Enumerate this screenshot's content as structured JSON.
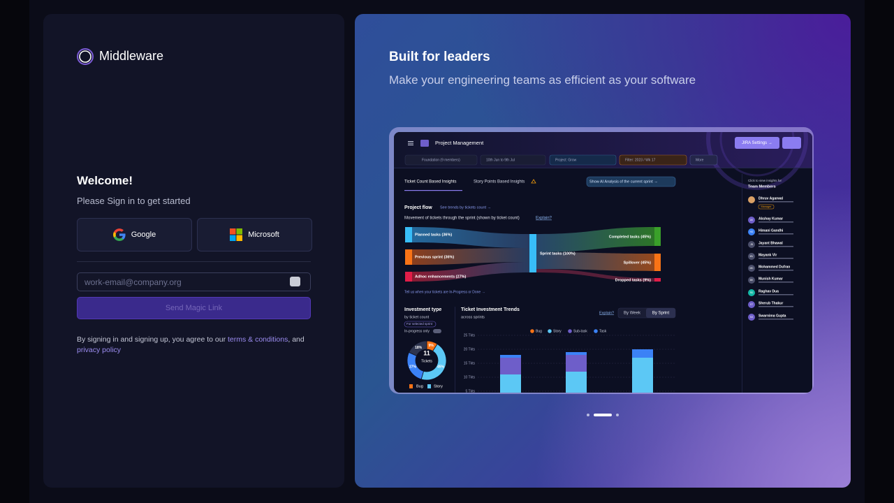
{
  "login": {
    "brand": "Middleware",
    "welcome": "Welcome!",
    "subtitle": "Please Sign in to get started",
    "google": "Google",
    "microsoft": "Microsoft",
    "email_placeholder": "work-email@company.org",
    "submit": "Send Magic Link",
    "terms_prefix": "By signing in and signing up, you agree to our ",
    "terms_link": "terms & conditions",
    "terms_mid": ", and",
    "privacy_link": "privacy policy"
  },
  "promo": {
    "title": "Built for leaders",
    "subtitle": "Make your engineering teams as efficient as your software"
  },
  "dashboard": {
    "header": "Project Management",
    "jira_button": "JIRA Settings →",
    "filters": [
      "Foundation (9 members)",
      "10th Jun to 9th Jul",
      "Project: Grow",
      "Filter: 2023 / Wk 17",
      "More"
    ],
    "tabs": [
      "Ticket Count Based Insights",
      "Story Points Based Insights"
    ],
    "ai_button": "Show AI Analysis of the current sprint →",
    "flow_title": "Project flow",
    "flow_trends": "See trends by tickets count →",
    "flow_desc": "Movement of tickets through the sprint (shown by ticket count)",
    "explain": "Explain?",
    "flow_nodes": [
      "Planned tasks (36%)",
      "Previous sprint (36%)",
      "Adhoc enhancements (27%)",
      "Sprint tasks (100%)",
      "Completed tasks (45%)",
      "Spillover (45%)",
      "Dropped tasks (9%)"
    ],
    "flow_footer": "Tell us when your tickets are In-Progress or Done →",
    "investment": {
      "title": "Investment type",
      "subtitle": "by ticket count",
      "badge": "For selected sprint",
      "toggle": "In-progress only",
      "center_value": "11",
      "center_label": "Tickets",
      "values": [
        9,
        45,
        27,
        18
      ],
      "value_labels": [
        "9%",
        "45%",
        "27%",
        "18%"
      ],
      "colors": [
        "#f97316",
        "#5cc8f5",
        "#3b82f6",
        "#2e3550"
      ],
      "legend": [
        "Bug",
        "Story"
      ]
    },
    "trends": {
      "title": "Ticket Investment Trends",
      "subtitle": "across sprints",
      "explain": "Explain?",
      "toggles": [
        "By Week",
        "By Sprint"
      ],
      "ylim": [
        0,
        25
      ],
      "yticks": [
        {
          "value": 5,
          "label": "5 Tkts"
        },
        {
          "value": 10,
          "label": "10 Tkts"
        },
        {
          "value": 15,
          "label": "15 Tkts"
        },
        {
          "value": 20,
          "label": "20 Tkts"
        },
        {
          "value": 25,
          "label": "25 Tkts"
        }
      ],
      "series": [
        {
          "name": "Bug",
          "color": "#f97316",
          "values": [
            0,
            0,
            0
          ]
        },
        {
          "name": "Story",
          "color": "#5cc8f5",
          "values": [
            11,
            12,
            17
          ]
        },
        {
          "name": "Sub-task",
          "color": "#6e5ec9",
          "values": [
            6,
            6,
            0
          ]
        },
        {
          "name": "Task",
          "color": "#3b82f6",
          "values": [
            1,
            1,
            3
          ]
        }
      ]
    },
    "team": {
      "hint": "Click to view insights for",
      "title": "Team Members",
      "manager_badge": "Manager",
      "members": [
        {
          "name": "Dhruv Agarwal",
          "initials": ""
        },
        {
          "name": "Akshay Kumar",
          "initials": "AK"
        },
        {
          "name": "Himani Gandhi",
          "initials": "HG"
        },
        {
          "name": "Jayant Bhawal",
          "initials": "JB"
        },
        {
          "name": "Mayank Vir",
          "initials": "MV"
        },
        {
          "name": "Mohammed Dufran",
          "initials": "MD"
        },
        {
          "name": "Munish Kumar",
          "initials": "MK"
        },
        {
          "name": "Raghav Dua",
          "initials": "RD"
        },
        {
          "name": "Sherub Thakur",
          "initials": "ST"
        },
        {
          "name": "Swarnima Gupta",
          "initials": "SG"
        }
      ]
    }
  }
}
